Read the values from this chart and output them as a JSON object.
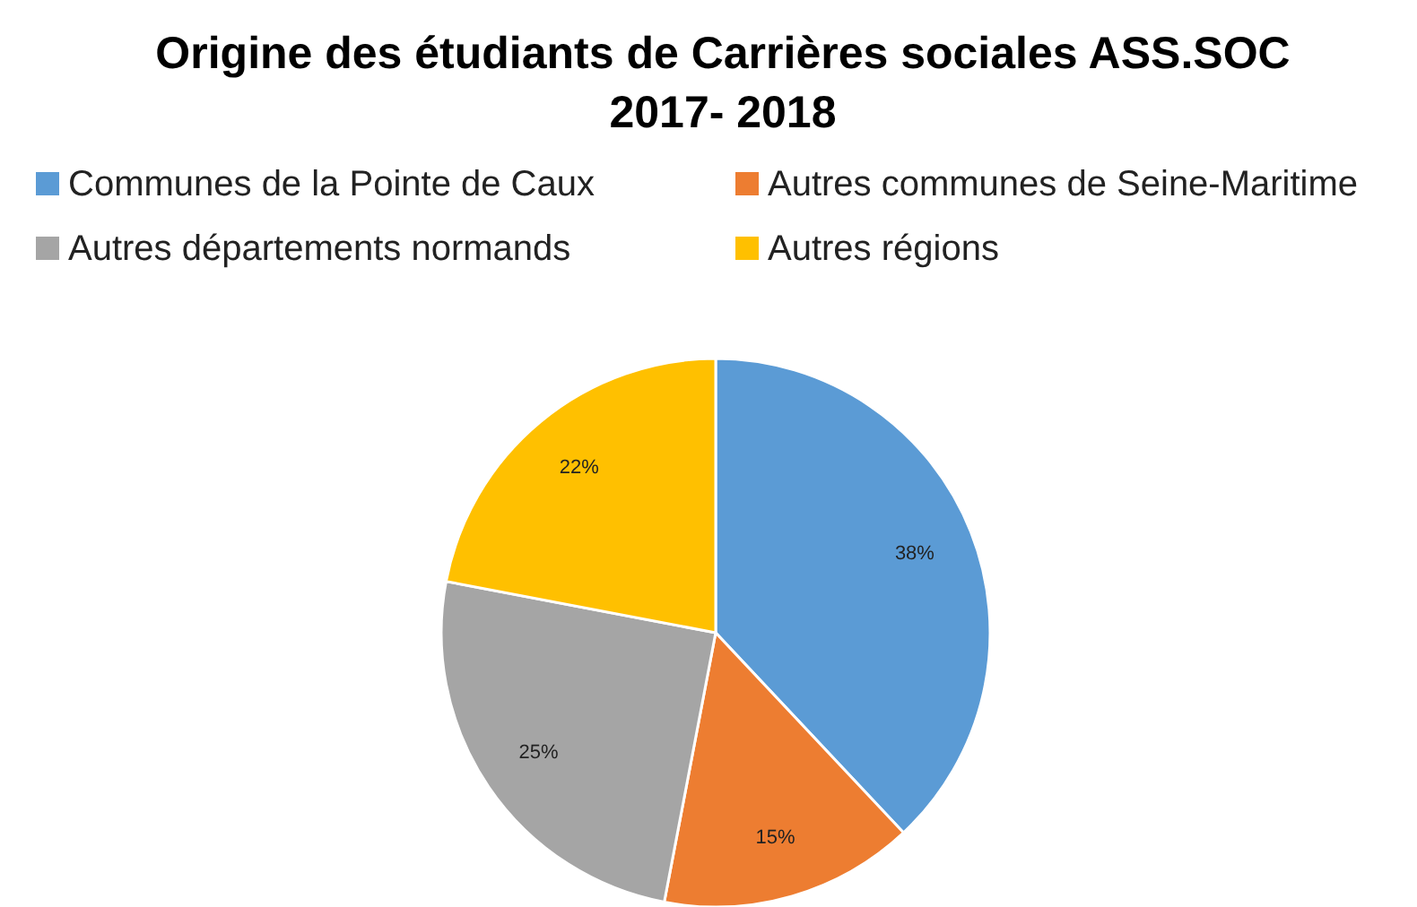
{
  "chart_data": {
    "type": "pie",
    "title": "Origine des étudiants de Carrières sociales ASS.SOC\n2017- 2018",
    "categories": [
      "Communes de la Pointe de Caux",
      "Autres communes de Seine-Maritime",
      "Autres départements normands",
      "Autres régions"
    ],
    "values": [
      38,
      15,
      25,
      22
    ],
    "colors": [
      "#5b9bd5",
      "#ed7d31",
      "#a5a5a5",
      "#ffc000"
    ],
    "value_labels": [
      "38%",
      "15%",
      "25%",
      "22%"
    ],
    "legend": "top"
  }
}
